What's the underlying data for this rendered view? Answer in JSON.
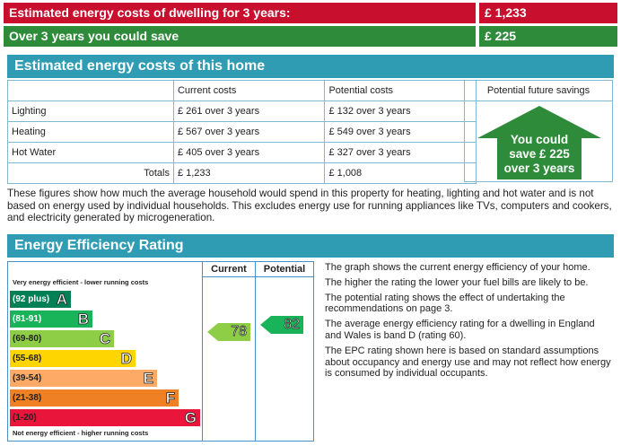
{
  "summary": {
    "estimated_label": "Estimated energy costs of dwelling for 3 years:",
    "estimated_value": "£ 1,233",
    "save_label": "Over 3 years you could save",
    "save_value": "£ 225"
  },
  "costs_section": {
    "title": "Estimated energy costs of this home",
    "headers": [
      "",
      "Current costs",
      "Potential costs",
      "Potential future savings"
    ],
    "rows": [
      {
        "label": "Lighting",
        "current": "£ 261 over 3 years",
        "potential": "£ 132 over 3 years"
      },
      {
        "label": "Heating",
        "current": "£ 567 over 3 years",
        "potential": "£ 549 over 3 years"
      },
      {
        "label": "Hot Water",
        "current": "£ 405 over 3 years",
        "potential": "£ 327 over 3 years"
      }
    ],
    "totals": {
      "label": "Totals",
      "current": "£ 1,233",
      "potential": "£ 1,008"
    },
    "savings_badge": {
      "line1": "You could",
      "line2": "save £ 225",
      "line3": "over 3 years",
      "color": "#2e8b3a"
    },
    "description": "These figures show how much the average household would spend in this property for heating, lighting and hot water and is not based on energy used by individual households. This excludes energy use for running appliances like TVs, computers and cookers, and electricity generated by microgeneration."
  },
  "rating_section": {
    "title": "Energy Efficiency Rating",
    "col_current": "Current",
    "col_potential": "Potential",
    "top_caption": "Very energy efficient - lower running costs",
    "bottom_caption": "Not energy efficient - higher running costs",
    "bands": [
      {
        "range": "(92 plus)",
        "letter": "A",
        "color": "#008054"
      },
      {
        "range": "(81-91)",
        "letter": "B",
        "color": "#19b459"
      },
      {
        "range": "(69-80)",
        "letter": "C",
        "color": "#8dce46"
      },
      {
        "range": "(55-68)",
        "letter": "D",
        "color": "#ffd500"
      },
      {
        "range": "(39-54)",
        "letter": "E",
        "color": "#fcaa65"
      },
      {
        "range": "(21-38)",
        "letter": "F",
        "color": "#ef8023"
      },
      {
        "range": "(1-20)",
        "letter": "G",
        "color": "#e9153b"
      }
    ],
    "current_rating": {
      "value": "78",
      "band": "C",
      "color": "#8dce46"
    },
    "potential_rating": {
      "value": "82",
      "band": "B",
      "color": "#19b459"
    },
    "notes": [
      "The graph shows the current energy efficiency of your home.",
      "The higher the rating the lower your fuel bills are likely to be.",
      "The potential rating shows the effect of undertaking the recommendations on page 3.",
      "The average energy efficiency rating for a dwelling in England and Wales is band D (rating 60).",
      "The EPC rating shown here is based on standard assumptions about occupancy and energy use and may not reflect how energy is consumed by individual occupants."
    ]
  }
}
